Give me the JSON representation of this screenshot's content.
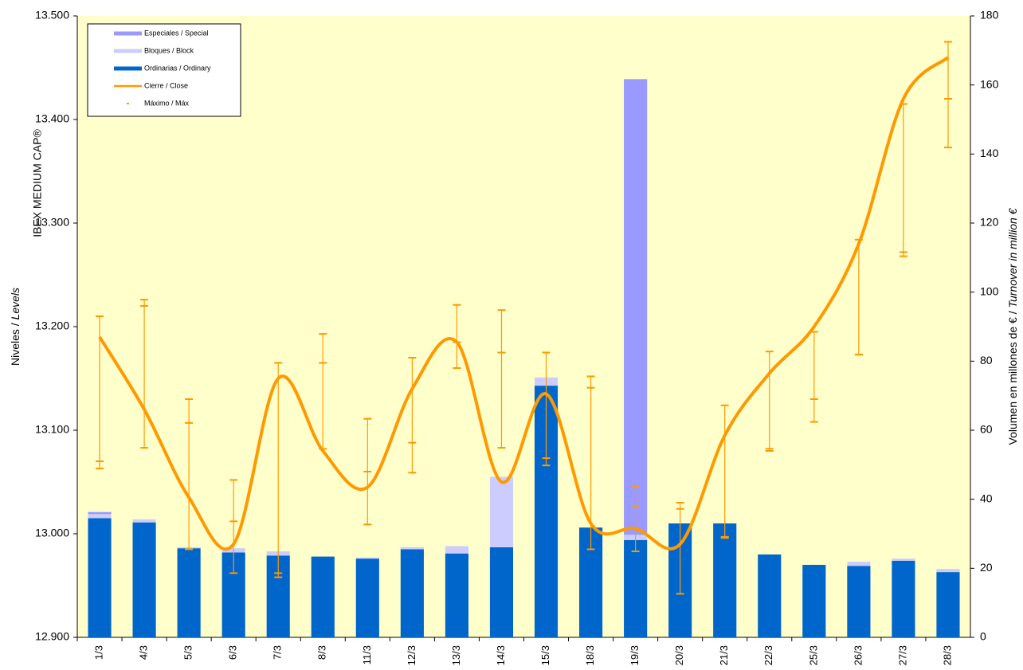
{
  "chart_data": {
    "type": "combo",
    "categories": [
      "1/3",
      "4/3",
      "5/3",
      "6/3",
      "7/3",
      "8/3",
      "11/3",
      "12/3",
      "13/3",
      "14/3",
      "15/3",
      "18/3",
      "19/3",
      "20/3",
      "21/3",
      "22/3",
      "25/3",
      "26/3",
      "27/3",
      "28/3"
    ],
    "ylabel": [
      "Niveles / ",
      "Levels"
    ],
    "ylabel_title": "IBEX MEDIUM CAP®",
    "y2label": [
      "Volumen en millones de € / ",
      "Turnover in million €"
    ],
    "ylim": [
      12900,
      13500
    ],
    "yticks": [
      {
        "value": 12900,
        "label": "12.900"
      },
      {
        "value": 13000,
        "label": "13.000"
      },
      {
        "value": 13100,
        "label": "13.100"
      },
      {
        "value": 13200,
        "label": "13.200"
      },
      {
        "value": 13300,
        "label": "13.300"
      },
      {
        "value": 13400,
        "label": "13.400"
      },
      {
        "value": 13500,
        "label": "13.500"
      }
    ],
    "y2lim": [
      0,
      180
    ],
    "y2ticks": [
      0,
      20,
      40,
      60,
      80,
      100,
      120,
      140,
      160,
      180
    ],
    "legend": "upper left",
    "series": [
      {
        "name": "Especiales / Special",
        "type": "bar",
        "axis": "y2",
        "color": "#9999ff",
        "values": [
          0.6,
          0,
          0,
          0,
          0,
          0,
          0,
          0,
          0,
          0,
          0,
          0,
          132.0,
          0,
          0,
          0,
          0,
          0,
          0,
          0
        ]
      },
      {
        "name": "Bloques / Block",
        "type": "bar",
        "axis": "y2",
        "color": "#ccccff",
        "values": [
          1.2,
          0.9,
          0.3,
          1.2,
          1.2,
          0,
          0.3,
          0.6,
          2.1,
          20.4,
          2.4,
          0,
          1.5,
          0,
          0,
          0,
          0,
          1.2,
          0.6,
          0.9
        ]
      },
      {
        "name": "Ordinarias / Ordinary",
        "type": "bar",
        "axis": "y2",
        "color": "#0066cc",
        "values": [
          34.5,
          33.3,
          25.8,
          24.6,
          23.7,
          23.4,
          22.8,
          25.5,
          24.3,
          26.1,
          72.9,
          31.8,
          28.2,
          33.0,
          33.0,
          24.0,
          21.0,
          20.7,
          22.2,
          18.9
        ]
      },
      {
        "name": "Cierre / Close",
        "type": "line",
        "axis": "y",
        "color": "#ff9900",
        "values": [
          13190,
          13120,
          13035,
          12990,
          13150,
          13080,
          13045,
          13140,
          13185,
          13050,
          13135,
          13010,
          13005,
          12990,
          13095,
          13155,
          13200,
          13280,
          13420,
          13460
        ]
      },
      {
        "name": "Máximo / Máx",
        "type": "hilo",
        "axis": "y",
        "color": "#ff9900",
        "values": [
          13210,
          13226,
          13130,
          13052,
          13165,
          13193,
          13111,
          13170,
          13221,
          13216,
          13175,
          13152,
          13046,
          13030,
          13124,
          13176,
          13195,
          13284,
          13415,
          13475
        ],
        "low": [
          13063,
          13083,
          12985,
          12962,
          12958,
          13082,
          13009,
          13059,
          13160,
          13083,
          13066,
          12985,
          12983,
          12942,
          12996,
          13080,
          13108,
          13173,
          13268,
          13373
        ],
        "mid": [
          13070,
          13220,
          13107,
          13012,
          12962,
          13165,
          13060,
          13088,
          13185,
          13175,
          13073,
          13141,
          13027,
          13024,
          12997,
          13082,
          13130,
          13173,
          13272,
          13420
        ]
      }
    ]
  }
}
